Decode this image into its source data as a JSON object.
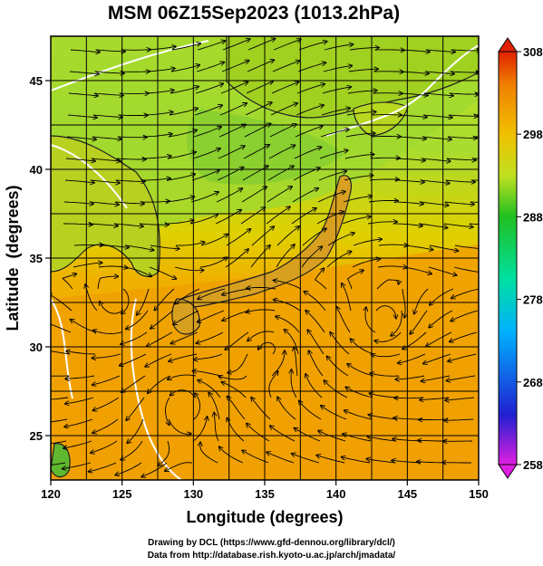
{
  "title": "MSM 06Z15Sep2023 (1013.2hPa)",
  "x_axis": {
    "label": "Longitude (degrees)",
    "range": [
      120,
      150
    ],
    "ticks": [
      "120",
      "125",
      "130",
      "135",
      "140",
      "145",
      "150"
    ]
  },
  "y_axis": {
    "label": "Latitude  (degrees)",
    "range": [
      22.5,
      47.5
    ],
    "ticks": [
      "25",
      "30",
      "35",
      "40",
      "45"
    ]
  },
  "colorbar": {
    "range": [
      258,
      308
    ],
    "ticks": [
      "258",
      "268",
      "278",
      "288",
      "298",
      "308"
    ],
    "colors": [
      "#e020e0",
      "#2020d0",
      "#00b0ff",
      "#00e0a0",
      "#20c020",
      "#c0e020",
      "#f0c000",
      "#f08000",
      "#e02000"
    ]
  },
  "map": {
    "variable": "temperature (K)",
    "overlay": "streamlines",
    "land_color": "#303030",
    "contour_color": "#ffffff",
    "grid_color": "#000000"
  },
  "credits": {
    "line1": "Drawing by DCL (https://www.gfd-dennou.org/library/dcl/)",
    "line2": "Data from http://database.rish.kyoto-u.ac.jp/arch/jmadata/"
  }
}
